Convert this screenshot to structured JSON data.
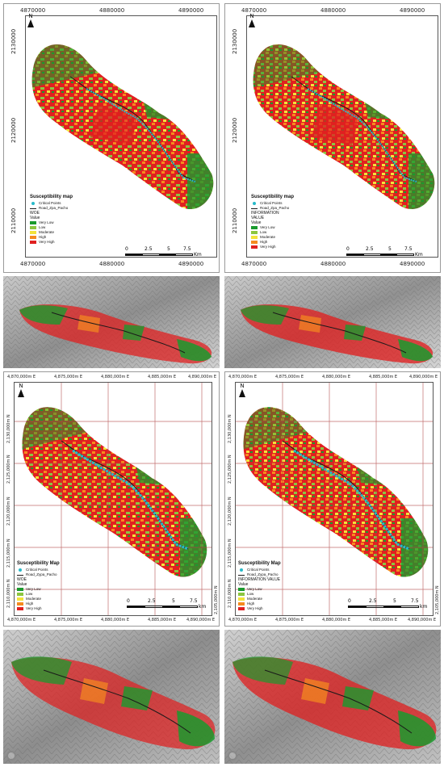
{
  "panels": [
    {
      "id": "a",
      "x_ticks": [
        "4870000",
        "4880000",
        "4890000"
      ],
      "y_ticks": [
        "2130000",
        "2120000",
        "2110000"
      ],
      "north_label": "N",
      "legend": {
        "title": "Susceptibility map",
        "points_label": "Critical Points",
        "road_label": "Road_Zpa_Pacho",
        "method": "WOE",
        "value_label": "Value",
        "classes": [
          "Very Low",
          "Low",
          "Moderate",
          "High",
          "Very High"
        ]
      },
      "scale": {
        "ticks": [
          "0",
          "2.5",
          "5",
          "7.5"
        ],
        "unit": "Km"
      }
    },
    {
      "id": "b",
      "x_ticks": [
        "4870000",
        "4880000",
        "4890000"
      ],
      "y_ticks": [
        "2130000",
        "2120000",
        "2110000"
      ],
      "north_label": "N",
      "legend": {
        "title": "Susceptibility map",
        "points_label": "Critical Points",
        "road_label": "Road_Zpa_Pacho",
        "method": "INFORMATION VALUE",
        "value_label": "Value",
        "classes": [
          "Very Low",
          "Low",
          "Moderate",
          "High",
          "Very High"
        ]
      },
      "scale": {
        "ticks": [
          "0",
          "2.5",
          "5",
          "7.5"
        ],
        "unit": "Km"
      }
    },
    {
      "id": "c",
      "x_ticks": [
        "4,870,000m E",
        "4,875,000m E",
        "4,880,000m E",
        "4,885,000m E",
        "4,890,000m E"
      ],
      "y_ticks": [
        "2,130,000m N",
        "2,125,000m N",
        "2,120,000m N",
        "2,115,000m N",
        "2,110,000m N",
        "2,105,000m N"
      ],
      "north_label": "N",
      "legend": {
        "title": "Susceptibility Map",
        "points_label": "Critical Points",
        "road_label": "Road_Zypa_Pacho",
        "method": "WOE",
        "value_label": "Value",
        "classes": [
          "Very Low",
          "Low",
          "Moderate",
          "High",
          "Very High"
        ]
      },
      "scale": {
        "ticks": [
          "0",
          "2.5",
          "5",
          "7.5"
        ],
        "unit": "km"
      }
    },
    {
      "id": "d",
      "x_ticks": [
        "4,870,000m E",
        "4,875,000m E",
        "4,880,000m E",
        "4,885,000m E",
        "4,890,000m E"
      ],
      "y_ticks": [
        "2,130,000m N",
        "2,125,000m N",
        "2,120,000m N",
        "2,115,000m N",
        "2,110,000m N",
        "2,105,000m N"
      ],
      "north_label": "N",
      "legend": {
        "title": "Susceptibility Map",
        "points_label": "Critical Points",
        "road_label": "Road_Zypa_Pacho",
        "method": "INFORMATION VALUE",
        "value_label": "Value",
        "classes": [
          "Very Low",
          "Low",
          "Moderate",
          "High",
          "Very High"
        ]
      },
      "scale": {
        "ticks": [
          "0",
          "2.5",
          "5",
          "7.5"
        ],
        "unit": "km"
      }
    }
  ],
  "colors": {
    "very_low": "#1a9a2e",
    "low": "#8cc63f",
    "moderate": "#f2e33b",
    "high": "#f58a1f",
    "very_high": "#e02020",
    "critical_points": "#27b9c9",
    "road": "#1a1a1a",
    "grid": "#b04a4a",
    "relief_light": "#d9d9d9",
    "relief_dark": "#7a7a7a"
  }
}
